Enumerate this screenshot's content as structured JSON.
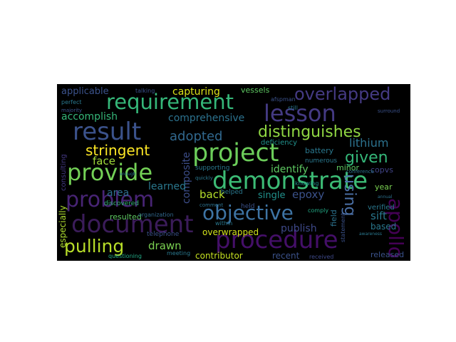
{
  "wordcloud": {
    "background": "#000000",
    "words": [
      {
        "text": "requirement",
        "color": "#35b779"
      },
      {
        "text": "lesson",
        "color": "#443a83"
      },
      {
        "text": "overlapped",
        "color": "#443a83"
      },
      {
        "text": "result",
        "color": "#3b528b"
      },
      {
        "text": "distinguishes",
        "color": "#90d743"
      },
      {
        "text": "adopted",
        "color": "#31688e"
      },
      {
        "text": "project",
        "color": "#6ccd5a"
      },
      {
        "text": "provide",
        "color": "#73d056"
      },
      {
        "text": "demonstrate",
        "color": "#3cbb75"
      },
      {
        "text": "apollo",
        "color": "#440154"
      },
      {
        "text": "problem",
        "color": "#482475"
      },
      {
        "text": "objective",
        "color": "#3e74a4"
      },
      {
        "text": "document",
        "color": "#3b1c5a"
      },
      {
        "text": "procedure",
        "color": "#440f68"
      },
      {
        "text": "pulling",
        "color": "#b8de29"
      },
      {
        "text": "using",
        "color": "#4c71a8"
      },
      {
        "text": "given",
        "color": "#35b779"
      },
      {
        "text": "stringent",
        "color": "#fde725"
      },
      {
        "text": "capturing",
        "color": "#dce319"
      },
      {
        "text": "applicable",
        "color": "#3b528b"
      },
      {
        "text": "comprehensive",
        "color": "#2c728e"
      },
      {
        "text": "accomplish",
        "color": "#35b779"
      },
      {
        "text": "lithium",
        "color": "#2c728e"
      },
      {
        "text": "face",
        "color": "#a0da39"
      },
      {
        "text": "identify",
        "color": "#5ec962"
      },
      {
        "text": "composite",
        "color": "#3d4e8a"
      },
      {
        "text": "learned",
        "color": "#2a788e"
      },
      {
        "text": "back",
        "color": "#b5de2b"
      },
      {
        "text": "epoxy",
        "color": "#3b528b"
      },
      {
        "text": "single",
        "color": "#21918c"
      },
      {
        "text": "area",
        "color": "#2e6f8e"
      },
      {
        "text": "drawn",
        "color": "#7ad151"
      },
      {
        "text": "publish",
        "color": "#3e4989"
      },
      {
        "text": "sift",
        "color": "#2a788e"
      },
      {
        "text": "overwrapped",
        "color": "#d2e21b"
      },
      {
        "text": "contributor",
        "color": "#c5e021"
      },
      {
        "text": "recent",
        "color": "#3b528b"
      },
      {
        "text": "especially",
        "color": "#addc30"
      },
      {
        "text": "consulting",
        "color": "#443983"
      },
      {
        "text": "resulted",
        "color": "#5ec962"
      },
      {
        "text": "based",
        "color": "#2a788e"
      },
      {
        "text": "released",
        "color": "#3b528b"
      },
      {
        "text": "vessels",
        "color": "#5ec962"
      },
      {
        "text": "battery",
        "color": "#2a788e"
      },
      {
        "text": "minor",
        "color": "#5ec962"
      },
      {
        "text": "copvs",
        "color": "#414487"
      },
      {
        "text": "year",
        "color": "#7ad151"
      },
      {
        "text": "verified",
        "color": "#2a788e"
      },
      {
        "text": "field",
        "color": "#2c728e"
      },
      {
        "text": "deficiency",
        "color": "#21918c"
      },
      {
        "text": "numerous",
        "color": "#2a788e"
      },
      {
        "text": "supporting",
        "color": "#2a788e"
      },
      {
        "text": "discovered",
        "color": "#35b779"
      },
      {
        "text": "telephone",
        "color": "#3b528b"
      },
      {
        "text": "meeting",
        "color": "#2a788e"
      },
      {
        "text": "questioning",
        "color": "#22a884"
      },
      {
        "text": "organization",
        "color": "#31688e"
      },
      {
        "text": "helped",
        "color": "#2a788e"
      },
      {
        "text": "held",
        "color": "#3b528b"
      },
      {
        "text": "within",
        "color": "#2a788e"
      },
      {
        "text": "talking",
        "color": "#3b528b"
      },
      {
        "text": "afspman",
        "color": "#3b528b"
      },
      {
        "text": "perfect",
        "color": "#2a788e"
      },
      {
        "text": "majority",
        "color": "#3b528b"
      },
      {
        "text": "knowing",
        "color": "#21918c"
      },
      {
        "text": "comply",
        "color": "#22a884"
      },
      {
        "text": "received",
        "color": "#3e4989"
      },
      {
        "text": "statement",
        "color": "#3b528b"
      },
      {
        "text": "still",
        "color": "#2a788e"
      },
      {
        "text": "conference",
        "color": "#2c728e"
      },
      {
        "text": "quickly",
        "color": "#2a788e"
      },
      {
        "text": "comment",
        "color": "#2c728e"
      },
      {
        "text": "surround",
        "color": "#3b528b"
      },
      {
        "text": "enough",
        "color": "#2a788e"
      },
      {
        "text": "awareness",
        "color": "#2a788e"
      },
      {
        "text": "annual",
        "color": "#2c728e"
      }
    ]
  }
}
